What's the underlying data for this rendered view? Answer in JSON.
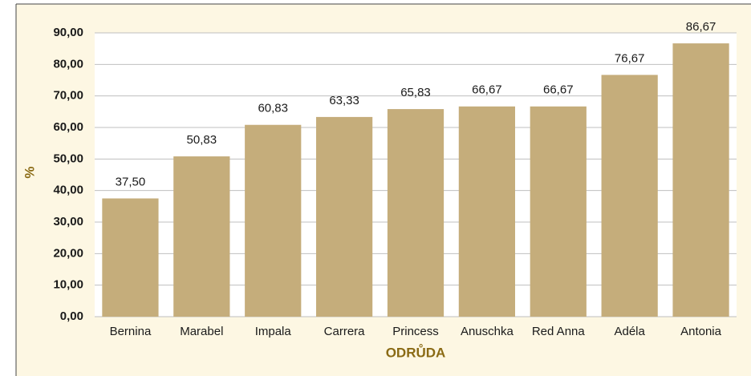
{
  "chart_data": {
    "type": "bar",
    "y_label": "%",
    "x_label": "ODRŮDA",
    "categories": [
      "Bernina",
      "Marabel",
      "Impala",
      "Carrera",
      "Princess",
      "Anuschka",
      "Red Anna",
      "Adéla",
      "Antonia"
    ],
    "values": [
      37.5,
      50.83,
      60.83,
      63.33,
      65.83,
      66.67,
      66.67,
      76.67,
      86.67
    ],
    "value_labels": [
      "37,50",
      "50,83",
      "60,83",
      "63,33",
      "65,83",
      "66,67",
      "66,67",
      "76,67",
      "86,67"
    ],
    "color": "#c5ad7b",
    "ylim": [
      0,
      90
    ],
    "yticks": [
      {
        "value": 0,
        "label": "0,00"
      },
      {
        "value": 10,
        "label": "10,00"
      },
      {
        "value": 20,
        "label": "20,00"
      },
      {
        "value": 30,
        "label": "30,00"
      },
      {
        "value": 40,
        "label": "40,00"
      },
      {
        "value": 50,
        "label": "50,00"
      },
      {
        "value": 60,
        "label": "60,00"
      },
      {
        "value": 70,
        "label": "70,00"
      },
      {
        "value": 80,
        "label": "80,00"
      },
      {
        "value": 90,
        "label": "90,00"
      }
    ],
    "grid": true
  }
}
